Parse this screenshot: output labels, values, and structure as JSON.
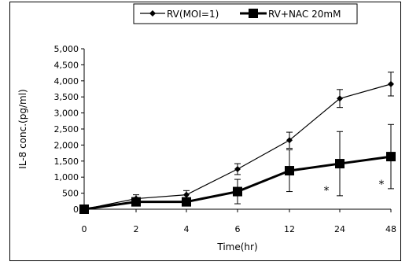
{
  "chart_data": {
    "type": "line",
    "categories": [
      "0",
      "2",
      "4",
      "6",
      "12",
      "24",
      "48"
    ],
    "xlabel": "Time(hr)",
    "ylabel": "IL-8 conc.(pg/ml)",
    "ylim": [
      0,
      5000
    ],
    "yticks": [
      "0",
      "500",
      "1,000",
      "1,500",
      "2,000",
      "2,500",
      "3,000",
      "3,500",
      "4,000",
      "4,500",
      "5,000"
    ],
    "grid": false,
    "legend_position": "top",
    "series": [
      {
        "name": "RV(MOI=1)",
        "marker": "diamond",
        "color": "#000000",
        "values": [
          0,
          330,
          450,
          1250,
          2150,
          3450,
          3900
        ],
        "error": [
          0,
          120,
          130,
          170,
          250,
          280,
          370
        ]
      },
      {
        "name": "RV+NAC 20mM",
        "marker": "square",
        "color": "#000000",
        "values": [
          0,
          230,
          230,
          550,
          1200,
          1420,
          1640
        ],
        "error": [
          0,
          130,
          120,
          380,
          650,
          1000,
          1000
        ]
      }
    ],
    "annotations": [
      {
        "category": "24",
        "text": "*"
      },
      {
        "category": "48",
        "text": "*"
      }
    ]
  }
}
